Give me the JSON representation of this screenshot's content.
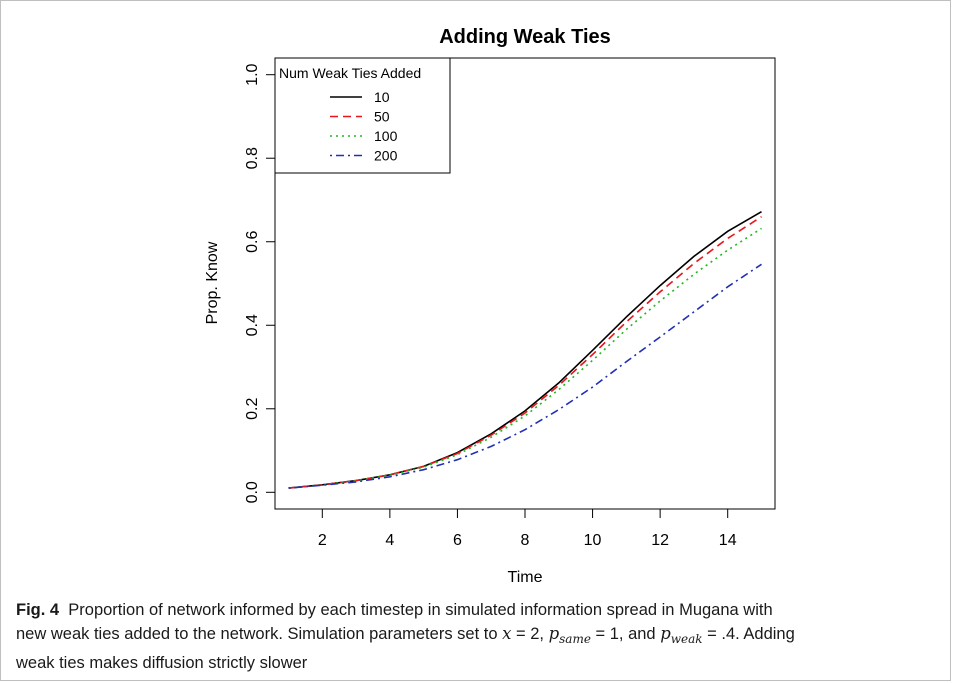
{
  "chart_data": {
    "type": "line",
    "title": "Adding Weak Ties",
    "xlabel": "Time",
    "ylabel": "Prop. Know",
    "xlim": [
      0.6,
      15.4
    ],
    "ylim": [
      -0.04,
      1.04
    ],
    "xticks": [
      2,
      4,
      6,
      8,
      10,
      12,
      14
    ],
    "yticks": [
      0.0,
      0.2,
      0.4,
      0.6,
      0.8,
      1.0
    ],
    "ytick_labels": [
      "0.0",
      "0.2",
      "0.4",
      "0.6",
      "0.8",
      "1.0"
    ],
    "x": [
      1,
      2,
      3,
      4,
      5,
      6,
      7,
      8,
      9,
      10,
      11,
      12,
      13,
      14,
      15
    ],
    "legend_title": "Num Weak Ties Added",
    "legend_position": "top-left",
    "series": [
      {
        "name": "10",
        "color": "#000000",
        "dash": "solid",
        "values": [
          0.01,
          0.018,
          0.028,
          0.042,
          0.062,
          0.095,
          0.14,
          0.195,
          0.262,
          0.34,
          0.42,
          0.495,
          0.565,
          0.625,
          0.672
        ]
      },
      {
        "name": "50",
        "color": "#e8161b",
        "dash": "dashed",
        "values": [
          0.01,
          0.018,
          0.028,
          0.042,
          0.062,
          0.093,
          0.137,
          0.19,
          0.256,
          0.33,
          0.408,
          0.48,
          0.548,
          0.608,
          0.66
        ]
      },
      {
        "name": "100",
        "color": "#1fb81f",
        "dash": "dotted",
        "values": [
          0.01,
          0.018,
          0.027,
          0.041,
          0.06,
          0.09,
          0.132,
          0.183,
          0.246,
          0.316,
          0.39,
          0.458,
          0.522,
          0.58,
          0.632
        ]
      },
      {
        "name": "200",
        "color": "#2230b4",
        "dash": "dotdash",
        "values": [
          0.01,
          0.017,
          0.025,
          0.037,
          0.054,
          0.078,
          0.11,
          0.15,
          0.198,
          0.252,
          0.313,
          0.372,
          0.432,
          0.492,
          0.546
        ]
      }
    ]
  },
  "caption": {
    "label": "Fig. 4",
    "line1": "Proportion of network informed by each timestep in simulated information spread in Mugana with",
    "line2_a": "new weak ties added to the network. Simulation parameters set to ",
    "x_var": "x",
    "x_val": " = 2, ",
    "p": "p",
    "sub_same": "same",
    "same_val": " = 1, and ",
    "sub_weak": "weak",
    "weak_val": " = .4. Adding",
    "line3": "weak ties makes diffusion strictly slower"
  }
}
